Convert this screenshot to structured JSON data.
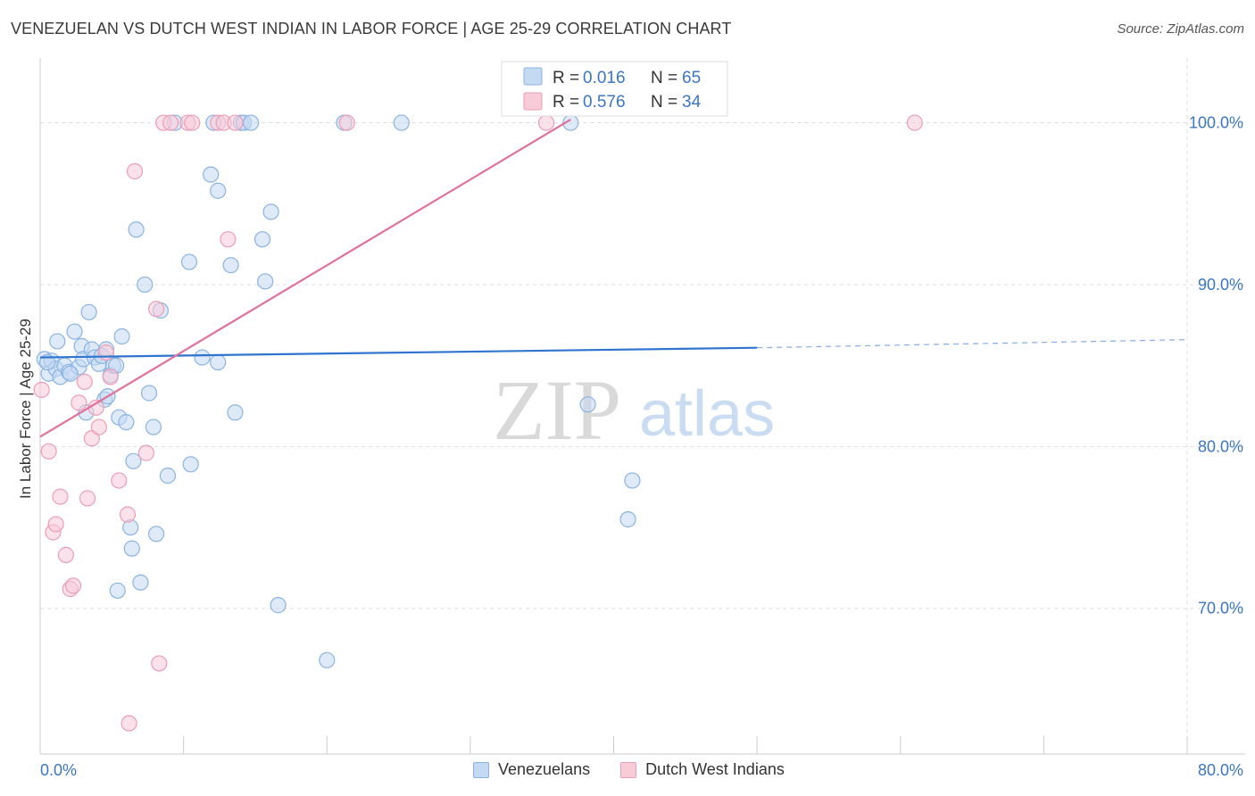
{
  "title": "VENEZUELAN VS DUTCH WEST INDIAN IN LABOR FORCE | AGE 25-29 CORRELATION CHART",
  "source": "Source: ZipAtlas.com",
  "watermark": {
    "zip": "ZIP",
    "atlas": "atlas"
  },
  "colors": {
    "blue_fill": "#c4d9f2",
    "blue_stroke": "#8ab3e2",
    "blue_line": "#2f74cf",
    "pink_fill": "#f8cbd8",
    "pink_stroke": "#ec9db6",
    "pink_line": "#e0729a",
    "grid": "#dddddd",
    "axis_label": "#3a76c4"
  },
  "chart_data": {
    "type": "scatter",
    "title": "VENEZUELAN VS DUTCH WEST INDIAN IN LABOR FORCE | AGE 25-29 CORRELATION CHART",
    "xlabel": "",
    "ylabel": "In Labor Force | Age 25-29",
    "xlim": [
      0,
      80
    ],
    "ylim": [
      61,
      104
    ],
    "x_tick_labels": [
      "0.0%",
      "80.0%"
    ],
    "y_ticks": [
      70,
      80,
      90,
      100
    ],
    "y_tick_labels": [
      "70.0%",
      "80.0%",
      "90.0%",
      "100.0%"
    ],
    "grid": true,
    "legend_position": "top-center",
    "legend": [
      {
        "name": "Venezuelans",
        "r_label": "R =",
        "r": "0.016",
        "n_label": "N =",
        "n": "65"
      },
      {
        "name": "Dutch West Indians",
        "r_label": "R =",
        "r": "0.576",
        "n_label": "N =",
        "n": "34"
      }
    ],
    "series": [
      {
        "name": "Venezuelans",
        "color": "#8ab3e2",
        "trend": {
          "x0": 0,
          "y0": 85.5,
          "x1": 50,
          "y1": 86.1,
          "dash_to_x": 80,
          "dash_y": 86.6
        },
        "points": [
          [
            0.3,
            85.4
          ],
          [
            0.6,
            84.5
          ],
          [
            0.8,
            85.3
          ],
          [
            1.1,
            84.8
          ],
          [
            1.2,
            86.5
          ],
          [
            1.4,
            84.3
          ],
          [
            1.7,
            85.0
          ],
          [
            2.0,
            84.6
          ],
          [
            2.4,
            87.1
          ],
          [
            2.7,
            84.9
          ],
          [
            2.9,
            86.2
          ],
          [
            3.0,
            85.4
          ],
          [
            3.2,
            82.1
          ],
          [
            3.4,
            88.3
          ],
          [
            3.6,
            86.0
          ],
          [
            3.8,
            85.5
          ],
          [
            4.1,
            85.1
          ],
          [
            4.3,
            85.6
          ],
          [
            4.5,
            82.9
          ],
          [
            4.7,
            83.1
          ],
          [
            4.9,
            84.4
          ],
          [
            5.1,
            85.0
          ],
          [
            5.3,
            85.0
          ],
          [
            5.5,
            81.8
          ],
          [
            5.7,
            86.8
          ],
          [
            6.0,
            81.5
          ],
          [
            6.3,
            75.0
          ],
          [
            6.5,
            79.1
          ],
          [
            6.7,
            93.4
          ],
          [
            7.0,
            71.6
          ],
          [
            7.3,
            90.0
          ],
          [
            7.6,
            83.3
          ],
          [
            7.9,
            81.2
          ],
          [
            8.1,
            74.6
          ],
          [
            8.4,
            88.4
          ],
          [
            8.9,
            78.2
          ],
          [
            9.4,
            100
          ],
          [
            10.4,
            91.4
          ],
          [
            10.5,
            78.9
          ],
          [
            11.3,
            85.5
          ],
          [
            11.9,
            96.8
          ],
          [
            12.1,
            100
          ],
          [
            12.4,
            85.2
          ],
          [
            12.4,
            95.8
          ],
          [
            13.3,
            91.2
          ],
          [
            13.6,
            82.1
          ],
          [
            14.0,
            100
          ],
          [
            14.2,
            100
          ],
          [
            14.7,
            100
          ],
          [
            15.5,
            92.8
          ],
          [
            15.7,
            90.2
          ],
          [
            16.1,
            94.5
          ],
          [
            16.6,
            70.2
          ],
          [
            20.0,
            66.8
          ],
          [
            21.2,
            100
          ],
          [
            25.2,
            100
          ],
          [
            37.0,
            100
          ],
          [
            38.2,
            82.6
          ],
          [
            41.0,
            75.5
          ],
          [
            41.3,
            77.9
          ],
          [
            0.5,
            85.2
          ],
          [
            6.4,
            73.7
          ],
          [
            4.6,
            86.0
          ],
          [
            2.1,
            84.5
          ],
          [
            5.4,
            71.1
          ]
        ]
      },
      {
        "name": "Dutch West Indians",
        "color": "#ec9db6",
        "trend": {
          "x0": 0,
          "y0": 80.6,
          "x1": 37,
          "y1": 100.2
        },
        "points": [
          [
            0.1,
            83.5
          ],
          [
            0.6,
            79.7
          ],
          [
            0.9,
            74.7
          ],
          [
            1.1,
            75.2
          ],
          [
            1.4,
            76.9
          ],
          [
            1.8,
            73.3
          ],
          [
            2.1,
            71.2
          ],
          [
            2.3,
            71.4
          ],
          [
            2.7,
            82.7
          ],
          [
            3.1,
            84.0
          ],
          [
            3.3,
            76.8
          ],
          [
            3.6,
            80.5
          ],
          [
            3.9,
            82.4
          ],
          [
            4.1,
            81.2
          ],
          [
            4.6,
            85.8
          ],
          [
            4.9,
            84.3
          ],
          [
            5.5,
            77.9
          ],
          [
            6.1,
            75.8
          ],
          [
            6.2,
            62.9
          ],
          [
            6.6,
            97.0
          ],
          [
            7.4,
            79.6
          ],
          [
            8.1,
            88.5
          ],
          [
            8.3,
            66.6
          ],
          [
            8.6,
            100
          ],
          [
            10.3,
            100
          ],
          [
            10.6,
            100
          ],
          [
            12.4,
            100
          ],
          [
            12.8,
            100
          ],
          [
            13.1,
            92.8
          ],
          [
            13.6,
            100
          ],
          [
            21.4,
            100
          ],
          [
            35.3,
            100
          ],
          [
            61.0,
            100
          ],
          [
            9.1,
            100
          ]
        ]
      }
    ]
  }
}
